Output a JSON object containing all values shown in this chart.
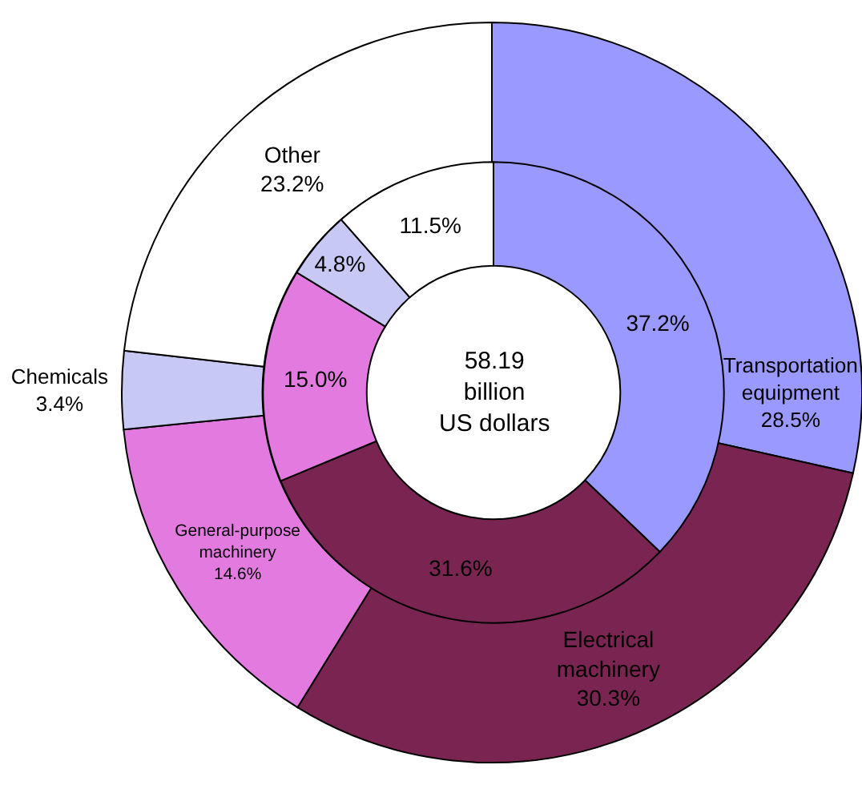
{
  "chart_data": {
    "type": "donut",
    "categories": [
      "Transportation equipment",
      "Electrical machinery",
      "General-purpose machinery",
      "Chemicals",
      "Other"
    ],
    "series": [
      {
        "values": [
          28.5,
          30.3,
          14.6,
          3.4,
          23.2
        ],
        "value_labels": [
          "28.5%",
          "30.3%",
          "14.6%",
          "3.4%",
          "23.2%"
        ],
        "colors": [
          "#9999ff",
          "#7a2452",
          "#e27ae0",
          "#c8c8f5",
          "#ffffff"
        ]
      },
      {
        "values": [
          37.2,
          31.6,
          15.0,
          4.8,
          11.5
        ],
        "value_labels": [
          "37.2%",
          "31.6%",
          "15.0%",
          "4.8%",
          "11.5%"
        ],
        "colors": [
          "#9999ff",
          "#7a2452",
          "#e27ae0",
          "#c8c8f5",
          "#ffffff"
        ]
      }
    ],
    "legend": false,
    "annotations": [
      "58.19 billion US dollars"
    ]
  }
}
